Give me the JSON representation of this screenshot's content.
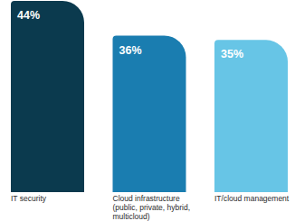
{
  "chart_data": {
    "type": "bar",
    "categories": [
      "IT security",
      "Cloud infrastructure (public, private, hybrid, multicloud)",
      "IT/cloud management"
    ],
    "values": [
      44,
      36,
      35
    ],
    "value_labels": [
      "44%",
      "36%",
      "35%"
    ],
    "colors": [
      "#0b3a4e",
      "#1a7db0",
      "#67c5e6"
    ],
    "data_labels": true,
    "tick_labels": false,
    "grid": false
  }
}
